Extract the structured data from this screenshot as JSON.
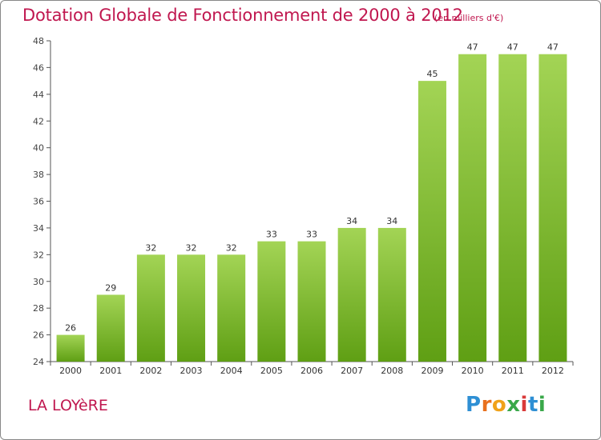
{
  "chart_data": {
    "type": "bar",
    "title": "Dotation Globale de Fonctionnement de 2000 à 2012",
    "subtitle": "(en milliers d'€)",
    "categories": [
      "2000",
      "2001",
      "2002",
      "2003",
      "2004",
      "2005",
      "2006",
      "2007",
      "2008",
      "2009",
      "2010",
      "2011",
      "2012"
    ],
    "values": [
      26,
      29,
      32,
      32,
      32,
      33,
      33,
      34,
      34,
      45,
      47,
      47,
      47
    ],
    "ylim": [
      24,
      48
    ],
    "yticks": [
      24,
      26,
      28,
      30,
      32,
      34,
      36,
      38,
      40,
      42,
      44,
      46,
      48
    ],
    "grid": false,
    "bar_color_top": "#a3d455",
    "bar_color_bottom": "#5f9f14"
  },
  "footer": {
    "commune": "LA LOYèRE",
    "logo": "Proxiti"
  },
  "colors": {
    "title": "#c0174f",
    "axis": "#555555",
    "frame": "#888888"
  }
}
